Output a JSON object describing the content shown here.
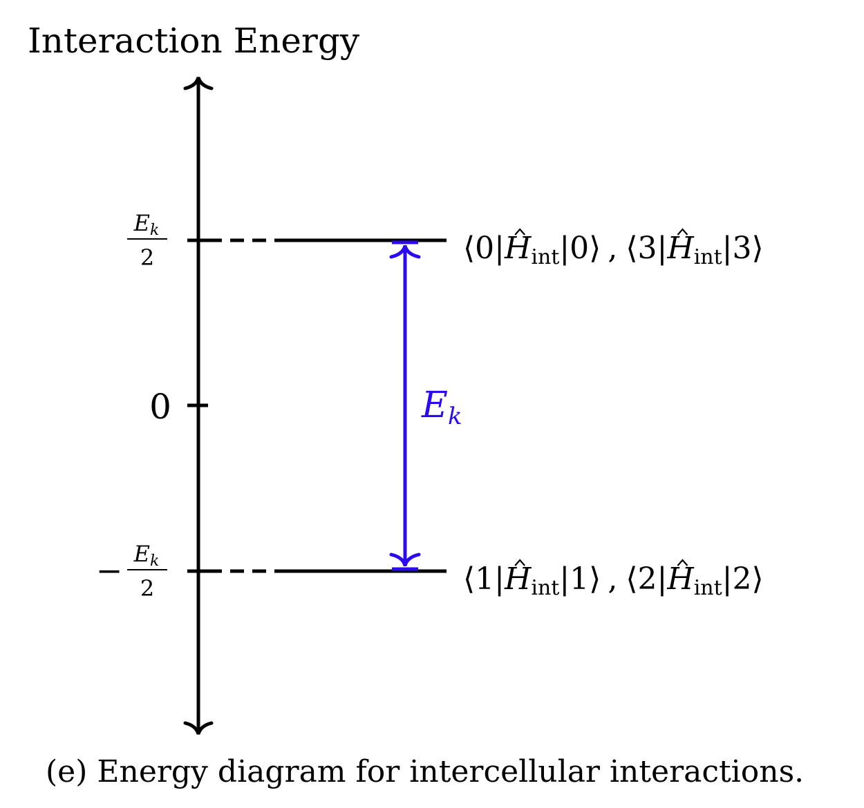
{
  "axis_title": "Interaction Energy",
  "ticks": {
    "top": {
      "numerator": "E",
      "numerator_sub": "k",
      "denominator": "2"
    },
    "zero": {
      "label": "0"
    },
    "bottom": {
      "sign": "−",
      "numerator": "E",
      "numerator_sub": "k",
      "denominator": "2"
    }
  },
  "levels": {
    "upper": {
      "part1_open": "⟨0|",
      "part1_H": "H",
      "part1_sub": "int",
      "part1_close": "|0⟩",
      "sep": ",",
      "part2_open": "⟨3|",
      "part2_H": "H",
      "part2_sub": "int",
      "part2_close": "|3⟩"
    },
    "lower": {
      "part1_open": "⟨1|",
      "part1_H": "H",
      "part1_sub": "int",
      "part1_close": "|1⟩",
      "sep": ",",
      "part2_open": "⟨2|",
      "part2_H": "H",
      "part2_sub": "int",
      "part2_close": "|2⟩"
    }
  },
  "gap": {
    "symbol": "E",
    "sub": "k",
    "color": "#2a0bf0"
  },
  "caption": "(e) Energy diagram for intercellular interactions."
}
